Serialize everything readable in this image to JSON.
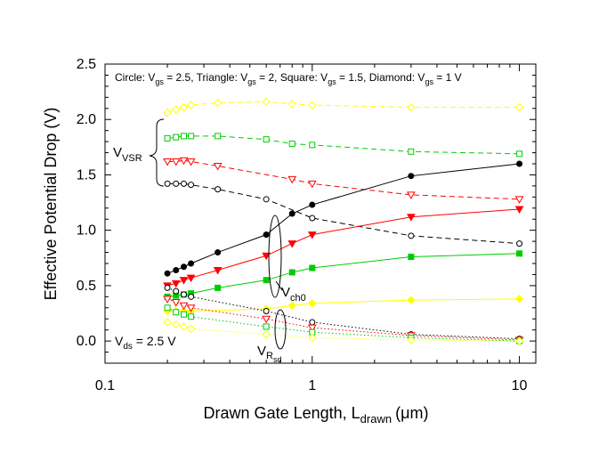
{
  "chart_data": {
    "type": "scatter",
    "xscale": "log",
    "xlim": [
      0.1,
      12
    ],
    "ylim": [
      -0.2,
      2.5
    ],
    "grid": false,
    "xlabel": {
      "main": "Drawn Gate Length, L",
      "sub": "drawn",
      "unit": "(μm)"
    },
    "ylabel": "Effective Potential Drop (V)",
    "xticks": [
      0.1,
      1,
      10
    ],
    "xtick_labels": [
      "0.1",
      "1",
      "10"
    ],
    "yticks": [
      0.0,
      0.5,
      1.0,
      1.5,
      2.0,
      2.5
    ],
    "ytick_labels": [
      "0.0",
      "0.5",
      "1.0",
      "1.5",
      "2.0",
      "2.5"
    ],
    "legend": [
      {
        "main": "Circle: V",
        "sub": "gs",
        "rest": " = 2.5, "
      },
      {
        "main": "Triangle: V",
        "sub": "gs",
        "rest": " = 2, "
      },
      {
        "main": "Square: V",
        "sub": "gs",
        "rest": " = 1.5, "
      },
      {
        "main": "Diamond: V",
        "sub": "gs",
        "rest": " = 1 V"
      }
    ],
    "annotations": {
      "vsr": {
        "main": "V",
        "sub": "VSR"
      },
      "vch0": {
        "main": "V",
        "sub": "ch0"
      },
      "vrsd": {
        "main": "V",
        "sub": "R",
        "subsub": "sd"
      },
      "vds": {
        "main": "V",
        "sub": "ds",
        "rest": " = 2.5 V"
      }
    },
    "colors": {
      "vgs_2.5": "#000000",
      "vgs_2": "#ff0000",
      "vgs_1.5": "#00cc00",
      "vgs_1": "#ffff00"
    },
    "series": [
      {
        "group": "VSR",
        "vgs": 2.5,
        "marker": "circle",
        "filled": false,
        "color": "#000000",
        "line": "dash",
        "x": [
          0.2,
          0.22,
          0.24,
          0.26,
          0.35,
          0.6,
          1,
          3,
          10
        ],
        "y": [
          1.42,
          1.42,
          1.42,
          1.41,
          1.37,
          1.28,
          1.11,
          0.95,
          0.88
        ]
      },
      {
        "group": "VSR",
        "vgs": 2,
        "marker": "triangle",
        "filled": false,
        "color": "#ff0000",
        "line": "dash",
        "x": [
          0.2,
          0.22,
          0.24,
          0.26,
          0.35,
          0.8,
          1,
          3,
          10
        ],
        "y": [
          1.62,
          1.62,
          1.63,
          1.62,
          1.58,
          1.46,
          1.42,
          1.32,
          1.28
        ]
      },
      {
        "group": "VSR",
        "vgs": 1.5,
        "marker": "square",
        "filled": false,
        "color": "#00cc00",
        "line": "dash",
        "x": [
          0.2,
          0.22,
          0.24,
          0.26,
          0.35,
          0.6,
          0.8,
          1,
          3,
          10
        ],
        "y": [
          1.83,
          1.84,
          1.85,
          1.85,
          1.85,
          1.82,
          1.78,
          1.77,
          1.71,
          1.69
        ]
      },
      {
        "group": "VSR",
        "vgs": 1,
        "marker": "diamond",
        "filled": false,
        "color": "#ffff00",
        "line": "dash",
        "x": [
          0.2,
          0.22,
          0.24,
          0.26,
          0.35,
          0.6,
          0.8,
          1,
          3,
          10
        ],
        "y": [
          2.06,
          2.09,
          2.11,
          2.13,
          2.15,
          2.16,
          2.14,
          2.13,
          2.11,
          2.11
        ]
      },
      {
        "group": "Vch0",
        "vgs": 2.5,
        "marker": "circle",
        "filled": true,
        "color": "#000000",
        "line": "solid",
        "x": [
          0.2,
          0.22,
          0.24,
          0.26,
          0.35,
          0.6,
          0.8,
          1,
          3,
          10
        ],
        "y": [
          0.61,
          0.64,
          0.67,
          0.7,
          0.8,
          0.96,
          1.15,
          1.23,
          1.49,
          1.6
        ]
      },
      {
        "group": "Vch0",
        "vgs": 2,
        "marker": "triangle",
        "filled": true,
        "color": "#ff0000",
        "line": "solid",
        "x": [
          0.2,
          0.22,
          0.24,
          0.26,
          0.35,
          0.6,
          0.8,
          1,
          3,
          10
        ],
        "y": [
          0.5,
          0.52,
          0.55,
          0.57,
          0.64,
          0.77,
          0.88,
          0.96,
          1.12,
          1.19
        ]
      },
      {
        "group": "Vch0",
        "vgs": 1.5,
        "marker": "square",
        "filled": true,
        "color": "#00cc00",
        "line": "solid",
        "x": [
          0.2,
          0.22,
          0.24,
          0.26,
          0.35,
          0.6,
          0.8,
          1,
          3,
          10
        ],
        "y": [
          0.4,
          0.41,
          0.42,
          0.43,
          0.48,
          0.55,
          0.62,
          0.66,
          0.76,
          0.79
        ]
      },
      {
        "group": "Vch0",
        "vgs": 1,
        "marker": "diamond",
        "filled": true,
        "color": "#ffff00",
        "line": "solid",
        "x": [
          0.2,
          0.22,
          0.24,
          0.26,
          0.6,
          0.8,
          1,
          3,
          10
        ],
        "y": [
          0.27,
          0.27,
          0.27,
          0.27,
          0.29,
          0.32,
          0.34,
          0.37,
          0.38
        ]
      },
      {
        "group": "VRsd",
        "vgs": 2.5,
        "marker": "circle",
        "filled": false,
        "color": "#000000",
        "line": "dot",
        "x": [
          0.2,
          0.22,
          0.24,
          0.26,
          0.6,
          1,
          3,
          10
        ],
        "y": [
          0.48,
          0.45,
          0.42,
          0.4,
          0.27,
          0.17,
          0.06,
          0.02
        ]
      },
      {
        "group": "VRsd",
        "vgs": 2,
        "marker": "triangle",
        "filled": false,
        "color": "#ff0000",
        "line": "dot",
        "x": [
          0.2,
          0.22,
          0.24,
          0.26,
          0.6,
          1,
          3,
          10
        ],
        "y": [
          0.38,
          0.35,
          0.32,
          0.3,
          0.2,
          0.12,
          0.05,
          0.01
        ]
      },
      {
        "group": "VRsd",
        "vgs": 1.5,
        "marker": "square",
        "filled": false,
        "color": "#00cc00",
        "line": "dot",
        "x": [
          0.2,
          0.22,
          0.24,
          0.26,
          0.6,
          1,
          3,
          10
        ],
        "y": [
          0.3,
          0.26,
          0.24,
          0.22,
          0.13,
          0.08,
          0.03,
          0.0
        ]
      },
      {
        "group": "VRsd",
        "vgs": 1,
        "marker": "diamond",
        "filled": false,
        "color": "#ffff00",
        "line": "dot",
        "x": [
          0.2,
          0.22,
          0.24,
          0.26,
          0.6,
          1,
          3,
          10
        ],
        "y": [
          0.17,
          0.15,
          0.13,
          0.11,
          0.06,
          0.03,
          0.01,
          0.0
        ]
      }
    ]
  }
}
